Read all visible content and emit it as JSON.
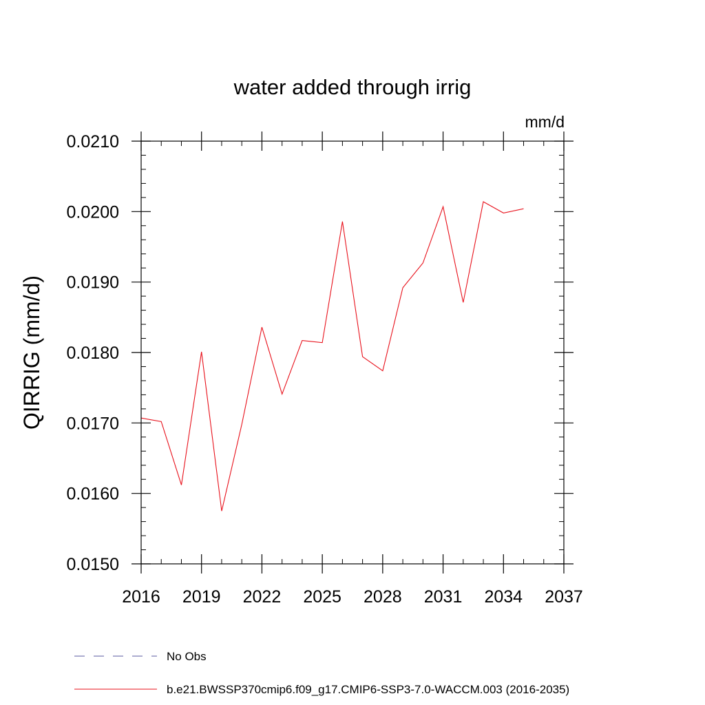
{
  "chart_data": {
    "type": "line",
    "title": "water added through irrig",
    "units_label": "mm/d",
    "ylabel": "QIRRIG  (mm/d)",
    "xlabel": "",
    "xlim": [
      2016,
      2037
    ],
    "ylim": [
      0.015,
      0.021
    ],
    "x_ticks": [
      2016,
      2019,
      2022,
      2025,
      2028,
      2031,
      2034,
      2037
    ],
    "x_tick_labels": [
      "2016",
      "2019",
      "2022",
      "2025",
      "2028",
      "2031",
      "2034",
      "2037"
    ],
    "x_minor_step": 1,
    "y_ticks": [
      0.015,
      0.016,
      0.017,
      0.018,
      0.019,
      0.02,
      0.021
    ],
    "y_tick_labels": [
      "0.0150",
      "0.0160",
      "0.0170",
      "0.0180",
      "0.0190",
      "0.0200",
      "0.0210"
    ],
    "y_minor_step": 0.0002,
    "grid": false,
    "series": [
      {
        "name": "b.e21.BWSSP370cmip6.f09_g17.CMIP6-SSP3-7.0-WACCM.003 (2016-2035)",
        "color": "#e8101a",
        "x": [
          2016,
          2017,
          2018,
          2019,
          2020,
          2021,
          2022,
          2023,
          2024,
          2025,
          2026,
          2027,
          2028,
          2029,
          2030,
          2031,
          2032,
          2033,
          2034,
          2035
        ],
        "values": [
          0.01707,
          0.01702,
          0.01612,
          0.01801,
          0.01575,
          0.01698,
          0.01836,
          0.01741,
          0.01817,
          0.01814,
          0.01986,
          0.01794,
          0.01774,
          0.01892,
          0.01927,
          0.02007,
          0.01871,
          0.02014,
          0.01998,
          0.02004
        ]
      }
    ],
    "legend": [
      {
        "label": "No Obs",
        "color": "#5a5aa0",
        "style": "dashed"
      },
      {
        "label": "b.e21.BWSSP370cmip6.f09_g17.CMIP6-SSP3-7.0-WACCM.003 (2016-2035)",
        "color": "#e8101a",
        "style": "solid"
      }
    ]
  }
}
